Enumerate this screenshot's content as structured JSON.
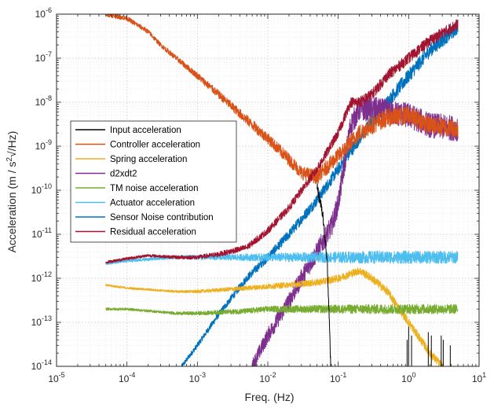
{
  "chart_data": {
    "type": "line",
    "title": "",
    "xlabel": "Freq. (Hz)",
    "ylabel_main": "Acceleration (m / s",
    "ylabel_sup": "2",
    "ylabel_tail": "/Hz)",
    "ylabel_sqrt": "√",
    "x_scale": "log",
    "y_scale": "log",
    "xlim": [
      1e-05,
      10
    ],
    "ylim": [
      1e-14,
      1e-06
    ],
    "grid": true,
    "legend_position": "left-middle",
    "x_tick_values": [
      1e-05,
      0.0001,
      0.001,
      0.01,
      0.1,
      1,
      10
    ],
    "x_tick_labels": [
      {
        "base": "10",
        "exp": "-5"
      },
      {
        "base": "10",
        "exp": "-4"
      },
      {
        "base": "10",
        "exp": "-3"
      },
      {
        "base": "10",
        "exp": "-2"
      },
      {
        "base": "10",
        "exp": "-1"
      },
      {
        "base": "10",
        "exp": "0"
      },
      {
        "base": "10",
        "exp": "1"
      }
    ],
    "y_tick_values": [
      1e-14,
      1e-13,
      1e-12,
      1e-11,
      1e-10,
      1e-09,
      1e-08,
      1e-07,
      1e-06
    ],
    "y_tick_labels": [
      {
        "base": "10",
        "exp": "-14"
      },
      {
        "base": "10",
        "exp": "-13"
      },
      {
        "base": "10",
        "exp": "-12"
      },
      {
        "base": "10",
        "exp": "-11"
      },
      {
        "base": "10",
        "exp": "-10"
      },
      {
        "base": "10",
        "exp": "-9"
      },
      {
        "base": "10",
        "exp": "-8"
      },
      {
        "base": "10",
        "exp": "-7"
      },
      {
        "base": "10",
        "exp": "-6"
      }
    ],
    "series": [
      {
        "name": "Input acceleration",
        "color": "#000000",
        "noise": 0.08,
        "points": [
          [
            0.05,
            1.2e-10
          ],
          [
            0.06,
            3e-11
          ],
          [
            0.07,
            2e-12
          ],
          [
            0.075,
            1e-13
          ],
          [
            0.078,
            1e-14
          ]
        ],
        "spikes": [
          [
            0.95,
            4e-14
          ],
          [
            1.0,
            8e-14
          ],
          [
            1.1,
            5e-14
          ],
          [
            1.9,
            6e-14
          ],
          [
            2.1,
            5e-14
          ],
          [
            2.9,
            5e-14
          ],
          [
            3.1,
            4e-14
          ],
          [
            3.9,
            3e-14
          ]
        ]
      },
      {
        "name": "Controller acceleration",
        "color": "#D95319",
        "noise": 0.13,
        "points": [
          [
            5e-05,
            1e-06
          ],
          [
            0.0001,
            8e-07
          ],
          [
            0.0002,
            4e-07
          ],
          [
            0.0003,
            2e-07
          ],
          [
            0.0005,
            1e-07
          ],
          [
            0.001,
            4e-08
          ],
          [
            0.002,
            1.5e-08
          ],
          [
            0.005,
            4e-09
          ],
          [
            0.01,
            1.5e-09
          ],
          [
            0.02,
            5e-10
          ],
          [
            0.03,
            2.5e-10
          ],
          [
            0.05,
            2e-10
          ],
          [
            0.1,
            6e-10
          ],
          [
            0.2,
            2e-09
          ],
          [
            0.3,
            3e-09
          ],
          [
            0.5,
            4.5e-09
          ],
          [
            1,
            5e-09
          ],
          [
            2,
            3e-09
          ],
          [
            5,
            2.5e-09
          ]
        ]
      },
      {
        "name": "Spring acceleration",
        "color": "#EDB120",
        "noise": 0.06,
        "points": [
          [
            5e-05,
            7e-13
          ],
          [
            0.0001,
            6e-13
          ],
          [
            0.0005,
            5e-13
          ],
          [
            0.001,
            5e-13
          ],
          [
            0.005,
            6e-13
          ],
          [
            0.01,
            6.5e-13
          ],
          [
            0.05,
            8e-13
          ],
          [
            0.1,
            1e-12
          ],
          [
            0.2,
            1.5e-12
          ],
          [
            0.3,
            1e-12
          ],
          [
            0.5,
            5e-13
          ],
          [
            1,
            1e-13
          ],
          [
            2,
            2e-14
          ],
          [
            3,
            1e-14
          ]
        ]
      },
      {
        "name": "d2xdt2",
        "color": "#7E2F8E",
        "noise": 0.18,
        "points": [
          [
            0.006,
            1e-14
          ],
          [
            0.01,
            5e-14
          ],
          [
            0.02,
            3e-13
          ],
          [
            0.03,
            1e-12
          ],
          [
            0.05,
            4e-12
          ],
          [
            0.08,
            1.5e-11
          ],
          [
            0.1,
            5e-11
          ],
          [
            0.15,
            3e-09
          ],
          [
            0.2,
            7e-09
          ],
          [
            0.3,
            7e-09
          ],
          [
            0.5,
            6e-09
          ],
          [
            1,
            5e-09
          ],
          [
            2,
            3e-09
          ],
          [
            5,
            2.5e-09
          ]
        ]
      },
      {
        "name": "TM noise acceleration",
        "color": "#77AC30",
        "noise": 0.07,
        "points": [
          [
            5e-05,
            2e-13
          ],
          [
            0.0001,
            2e-13
          ],
          [
            0.0005,
            1.6e-13
          ],
          [
            0.001,
            1.6e-13
          ],
          [
            0.005,
            1.8e-13
          ],
          [
            0.01,
            2e-13
          ],
          [
            0.1,
            2e-13
          ],
          [
            1,
            2e-13
          ],
          [
            5,
            2e-13
          ]
        ]
      },
      {
        "name": "Actuator acceleration",
        "color": "#4DBEEE",
        "noise": 0.09,
        "points": [
          [
            5e-05,
            2.2e-12
          ],
          [
            0.0001,
            2.5e-12
          ],
          [
            0.0005,
            3e-12
          ],
          [
            0.001,
            3e-12
          ],
          [
            0.01,
            3e-12
          ],
          [
            0.1,
            3e-12
          ],
          [
            1,
            3e-12
          ],
          [
            5,
            3e-12
          ]
        ]
      },
      {
        "name": "Sensor Noise contribution",
        "color": "#0072BD",
        "noise": 0.1,
        "points": [
          [
            0.0006,
            1e-14
          ],
          [
            0.001,
            3e-14
          ],
          [
            0.002,
            1.5e-13
          ],
          [
            0.005,
            1e-12
          ],
          [
            0.01,
            3e-12
          ],
          [
            0.02,
            1e-11
          ],
          [
            0.05,
            6e-11
          ],
          [
            0.1,
            3e-10
          ],
          [
            0.2,
            1.5e-09
          ],
          [
            0.5,
            1e-08
          ],
          [
            1,
            4e-08
          ],
          [
            2,
            1.5e-07
          ],
          [
            5,
            5e-07
          ]
        ]
      },
      {
        "name": "Residual acceleration",
        "color": "#A2142F",
        "noise": 0.08,
        "points": [
          [
            5e-05,
            2.3e-12
          ],
          [
            0.0001,
            2.8e-12
          ],
          [
            0.0002,
            3.3e-12
          ],
          [
            0.0005,
            3e-12
          ],
          [
            0.001,
            3e-12
          ],
          [
            0.002,
            3.5e-12
          ],
          [
            0.005,
            5e-12
          ],
          [
            0.01,
            1.2e-11
          ],
          [
            0.02,
            4e-11
          ],
          [
            0.05,
            3e-10
          ],
          [
            0.1,
            2e-09
          ],
          [
            0.15,
            1e-08
          ],
          [
            0.2,
            1e-08
          ],
          [
            0.3,
            1.5e-08
          ],
          [
            0.5,
            4e-08
          ],
          [
            1,
            1e-07
          ],
          [
            2,
            2.5e-07
          ],
          [
            5,
            6e-07
          ]
        ]
      }
    ]
  }
}
